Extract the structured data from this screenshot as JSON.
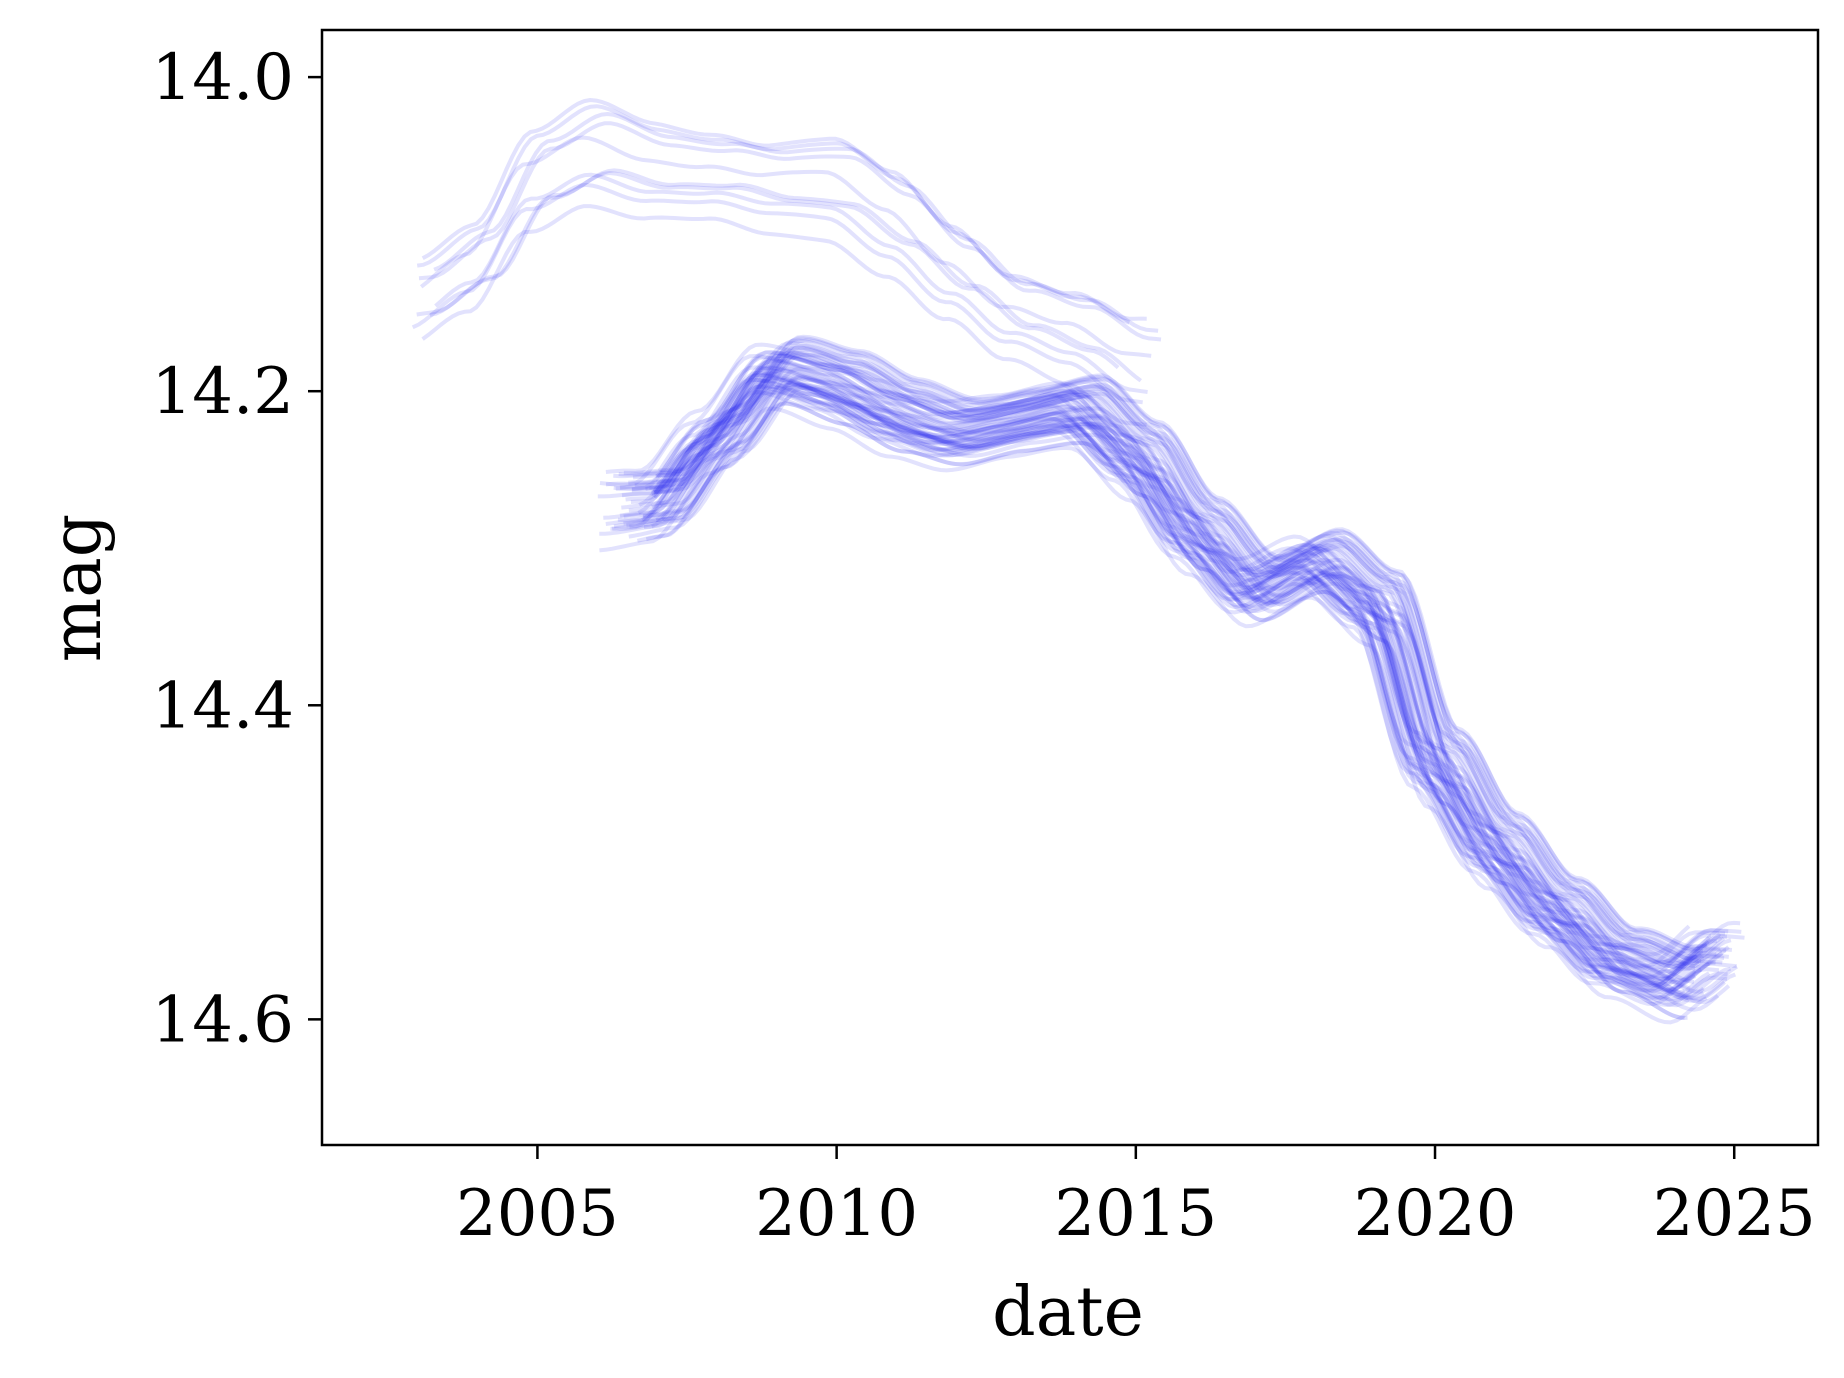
{
  "chart_data": {
    "type": "line",
    "title": "",
    "xlabel": "date",
    "ylabel": "mag",
    "xlim": [
      2001.4,
      2026.4
    ],
    "ylim": [
      14.68,
      13.97
    ],
    "y_inverted": true,
    "grid": false,
    "legend": "none",
    "line_color": "#3333ee",
    "line_alpha": 0.14,
    "x_ticks": [
      2005,
      2010,
      2015,
      2020,
      2025
    ],
    "x_tick_labels": [
      "2005",
      "2010",
      "2015",
      "2020",
      "2025"
    ],
    "y_ticks": [
      14.0,
      14.2,
      14.4,
      14.6
    ],
    "y_tick_labels": [
      "14.0",
      "14.2",
      "14.4",
      "14.6"
    ],
    "ensemble_count": 60,
    "early_ensemble_count": 10,
    "median_curve": {
      "x": [
        2006.0,
        2007.0,
        2008.0,
        2009.0,
        2010.0,
        2011.0,
        2012.0,
        2013.0,
        2014.0,
        2015.0,
        2016.0,
        2017.0,
        2018.0,
        2019.0,
        2020.0,
        2021.0,
        2022.0,
        2023.0,
        2024.0,
        2024.8
      ],
      "y": [
        14.275,
        14.27,
        14.23,
        14.19,
        14.2,
        14.215,
        14.225,
        14.22,
        14.215,
        14.245,
        14.29,
        14.325,
        14.31,
        14.34,
        14.44,
        14.49,
        14.53,
        14.565,
        14.58,
        14.56
      ]
    },
    "early_curve": {
      "x": [
        2003.0,
        2004.0,
        2005.0,
        2006.0,
        2007.0,
        2008.0,
        2009.0,
        2010.0,
        2011.0,
        2012.0,
        2013.0,
        2014.0,
        2015.0
      ],
      "y": [
        14.14,
        14.12,
        14.065,
        14.045,
        14.055,
        14.06,
        14.07,
        14.07,
        14.09,
        14.12,
        14.15,
        14.165,
        14.185
      ]
    }
  }
}
